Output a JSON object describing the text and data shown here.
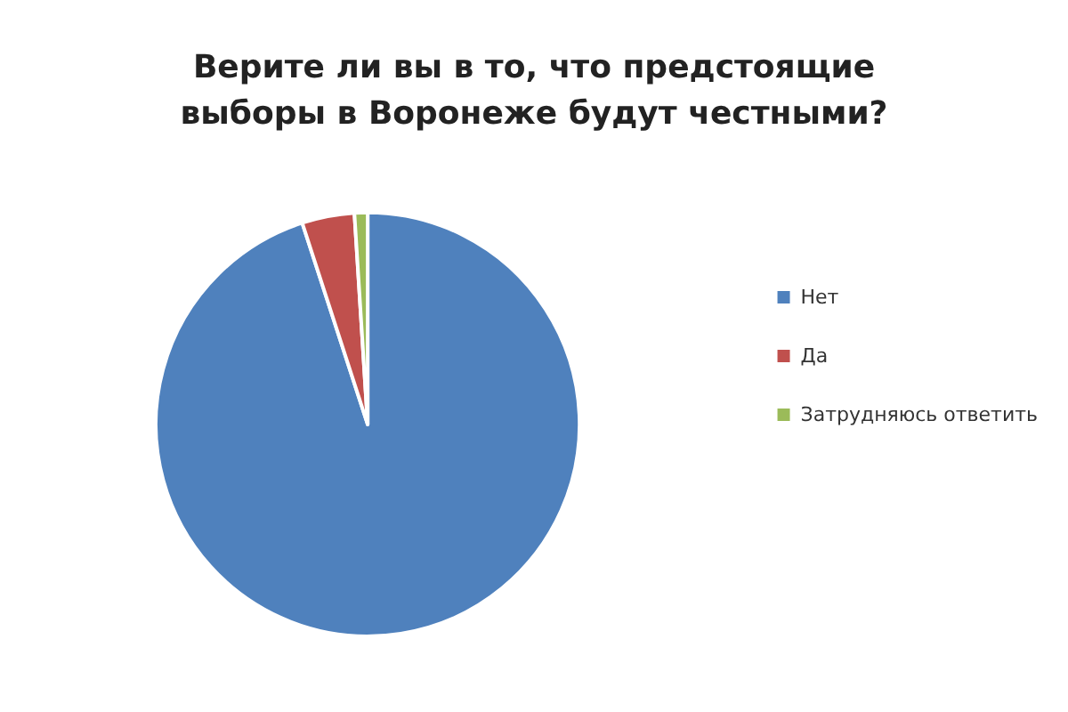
{
  "chart_data": {
    "type": "pie",
    "title": "Верите ли вы в то, что предстоящие\nвыборы в Воронеже будут честными?",
    "categories": [
      "Нет",
      "Да",
      "Затрудняюсь ответить"
    ],
    "values": [
      95,
      4,
      1
    ],
    "colors": [
      "#4f81bd",
      "#c0504d",
      "#9bbb59"
    ],
    "legend": "right"
  }
}
